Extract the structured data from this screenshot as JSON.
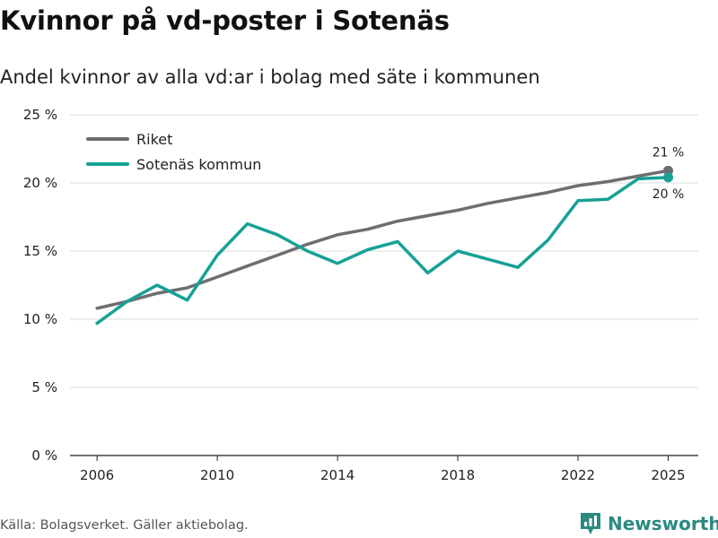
{
  "title": "Kvinnor på vd-poster i Sotenäs",
  "subtitle": "Andel kvinnor av alla vd:ar i bolag med säte i kommunen",
  "source": "Källa: Bolagsverket. Gäller aktiebolag.",
  "brand": "Newsworthy",
  "colors": {
    "riket": "#6e6e70",
    "sotenas": "#16a196",
    "brand": "#2c8a80"
  },
  "chart_data": {
    "type": "line",
    "title": "Kvinnor på vd-poster i Sotenäs",
    "xlabel": "",
    "ylabel": "",
    "xlim": [
      2005.1,
      2026.0
    ],
    "ylim": [
      0,
      25
    ],
    "grid": true,
    "legend_position": "top-left",
    "x_ticks": [
      2006,
      2010,
      2014,
      2018,
      2022,
      2025
    ],
    "x_tick_labels": [
      "2006",
      "2010",
      "2014",
      "2018",
      "2022",
      "2025"
    ],
    "y_ticks": [
      0,
      5,
      10,
      15,
      20,
      25
    ],
    "y_tick_labels": [
      "0 %",
      "5 %",
      "10 %",
      "15 %",
      "20 %",
      "25 %"
    ],
    "series": [
      {
        "name": "Riket",
        "color": "#6e6e70",
        "x": [
          2006,
          2007,
          2008,
          2009,
          2010,
          2011,
          2012,
          2013,
          2014,
          2015,
          2016,
          2017,
          2018,
          2019,
          2020,
          2021,
          2022,
          2023,
          2024,
          2025
        ],
        "values": [
          10.8,
          11.3,
          11.9,
          12.3,
          13.1,
          13.9,
          14.7,
          15.5,
          16.2,
          16.6,
          17.2,
          17.6,
          18.0,
          18.5,
          18.9,
          19.3,
          19.8,
          20.1,
          20.5,
          20.9
        ],
        "end_label": "21 %"
      },
      {
        "name": "Sotenäs kommun",
        "color": "#16a196",
        "x": [
          2006,
          2007,
          2008,
          2009,
          2010,
          2011,
          2012,
          2013,
          2014,
          2015,
          2016,
          2017,
          2018,
          2019,
          2020,
          2021,
          2022,
          2023,
          2024,
          2025
        ],
        "values": [
          9.7,
          11.3,
          12.5,
          11.4,
          14.7,
          17.0,
          16.2,
          15.0,
          14.1,
          15.1,
          15.7,
          13.4,
          15.0,
          14.4,
          13.8,
          15.8,
          18.7,
          18.8,
          20.3,
          20.4
        ],
        "end_label": "20 %"
      }
    ]
  }
}
